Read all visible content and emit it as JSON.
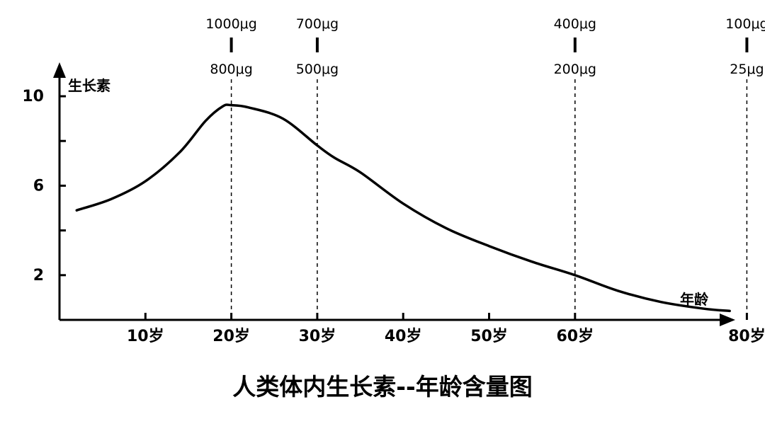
{
  "chart_data": {
    "type": "line",
    "title": "人类体内生长素--年龄含量图",
    "xlabel": "年龄",
    "ylabel": "生长素",
    "xlim": [
      0,
      85
    ],
    "ylim": [
      0,
      10
    ],
    "grid": false,
    "x_ticks": [
      {
        "value": 10,
        "label": "10岁"
      },
      {
        "value": 20,
        "label": "20岁"
      },
      {
        "value": 30,
        "label": "30岁"
      },
      {
        "value": 40,
        "label": "40岁"
      },
      {
        "value": 50,
        "label": "50岁"
      },
      {
        "value": 60,
        "label": "60岁"
      },
      {
        "value": 80,
        "label": "80岁"
      }
    ],
    "y_ticks": [
      {
        "value": 2,
        "label": "2"
      },
      {
        "value": 4,
        "label": ""
      },
      {
        "value": 6,
        "label": "6"
      },
      {
        "value": 8,
        "label": ""
      },
      {
        "value": 10,
        "label": "10"
      }
    ],
    "series": [
      {
        "name": "",
        "color": "#000000",
        "points": [
          [
            2,
            4.9
          ],
          [
            6,
            5.4
          ],
          [
            10,
            6.2
          ],
          [
            14,
            7.5
          ],
          [
            17,
            8.9
          ],
          [
            19,
            9.55
          ],
          [
            20,
            9.6
          ],
          [
            22,
            9.5
          ],
          [
            26,
            9.0
          ],
          [
            30,
            7.8
          ],
          [
            32,
            7.25
          ],
          [
            35,
            6.6
          ],
          [
            40,
            5.2
          ],
          [
            45,
            4.1
          ],
          [
            50,
            3.3
          ],
          [
            55,
            2.6
          ],
          [
            60,
            2.0
          ],
          [
            65,
            1.3
          ],
          [
            70,
            0.8
          ],
          [
            75,
            0.5
          ],
          [
            78,
            0.4
          ]
        ]
      }
    ],
    "markers": [
      {
        "x": 20,
        "upper": "1000μg",
        "lower": "800μg"
      },
      {
        "x": 30,
        "upper": "700μg",
        "lower": "500μg"
      },
      {
        "x": 60,
        "upper": "400μg",
        "lower": "200μg"
      },
      {
        "x": 80,
        "upper": "100μg",
        "lower": "25μg"
      }
    ]
  }
}
